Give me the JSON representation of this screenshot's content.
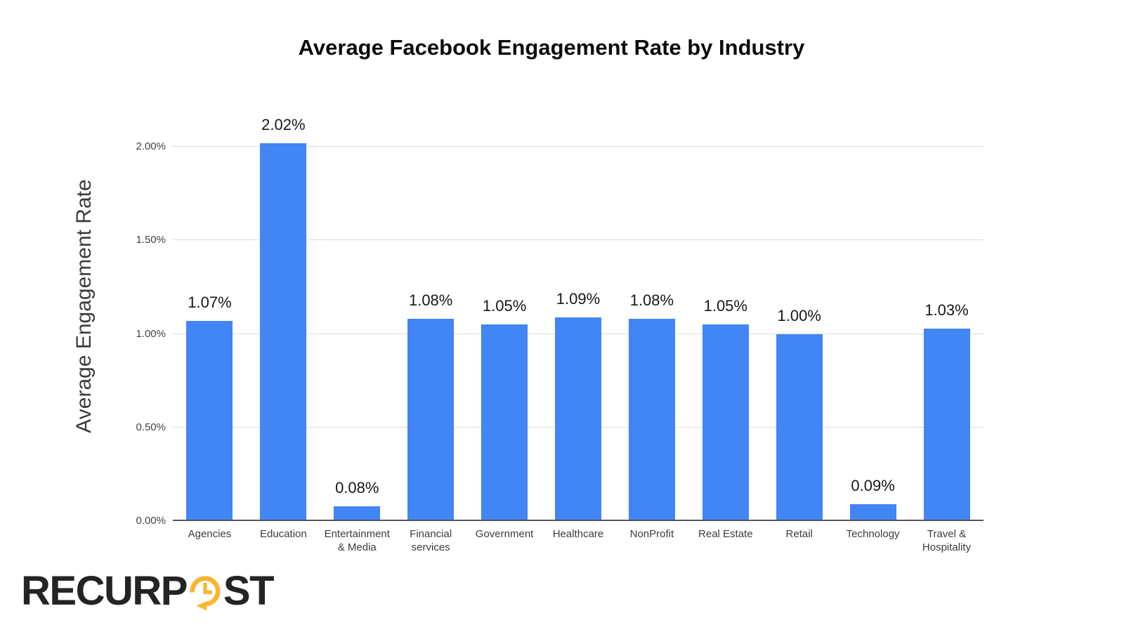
{
  "chart_data": {
    "type": "bar",
    "title": "Average Facebook Engagement Rate by Industry",
    "xlabel": "",
    "ylabel": "Average Engagement Rate",
    "categories": [
      "Agencies",
      "Education",
      "Entertainment\n& Media",
      "Financial\nservices",
      "Government",
      "Healthcare",
      "NonProfit",
      "Real Estate",
      "Retail",
      "Technology",
      "Travel &\nHospitality"
    ],
    "values": [
      1.07,
      2.02,
      0.08,
      1.08,
      1.05,
      1.09,
      1.08,
      1.05,
      1.0,
      0.09,
      1.03
    ],
    "data_labels": [
      "1.07%",
      "2.02%",
      "0.08%",
      "1.08%",
      "1.05%",
      "1.09%",
      "1.08%",
      "1.05%",
      "1.00%",
      "0.09%",
      "1.03%"
    ],
    "ylim": [
      0,
      2.0
    ],
    "yticks": [
      {
        "value": 0.0,
        "label": "0.00%"
      },
      {
        "value": 0.5,
        "label": "0.50%"
      },
      {
        "value": 1.0,
        "label": "1.00%"
      },
      {
        "value": 1.5,
        "label": "1.50%"
      },
      {
        "value": 2.0,
        "label": "2.00%"
      }
    ],
    "grid": true,
    "legend_position": "none",
    "colors": {
      "bar": "#4285F4",
      "gridline": "#dcdcdc",
      "axis_line": "#555555"
    }
  },
  "branding": {
    "name": "RecurPost",
    "logo_part1": "RECURP",
    "logo_part2": "ST",
    "clock_icon_color": "#F8B62E",
    "text_color": "#242424"
  }
}
